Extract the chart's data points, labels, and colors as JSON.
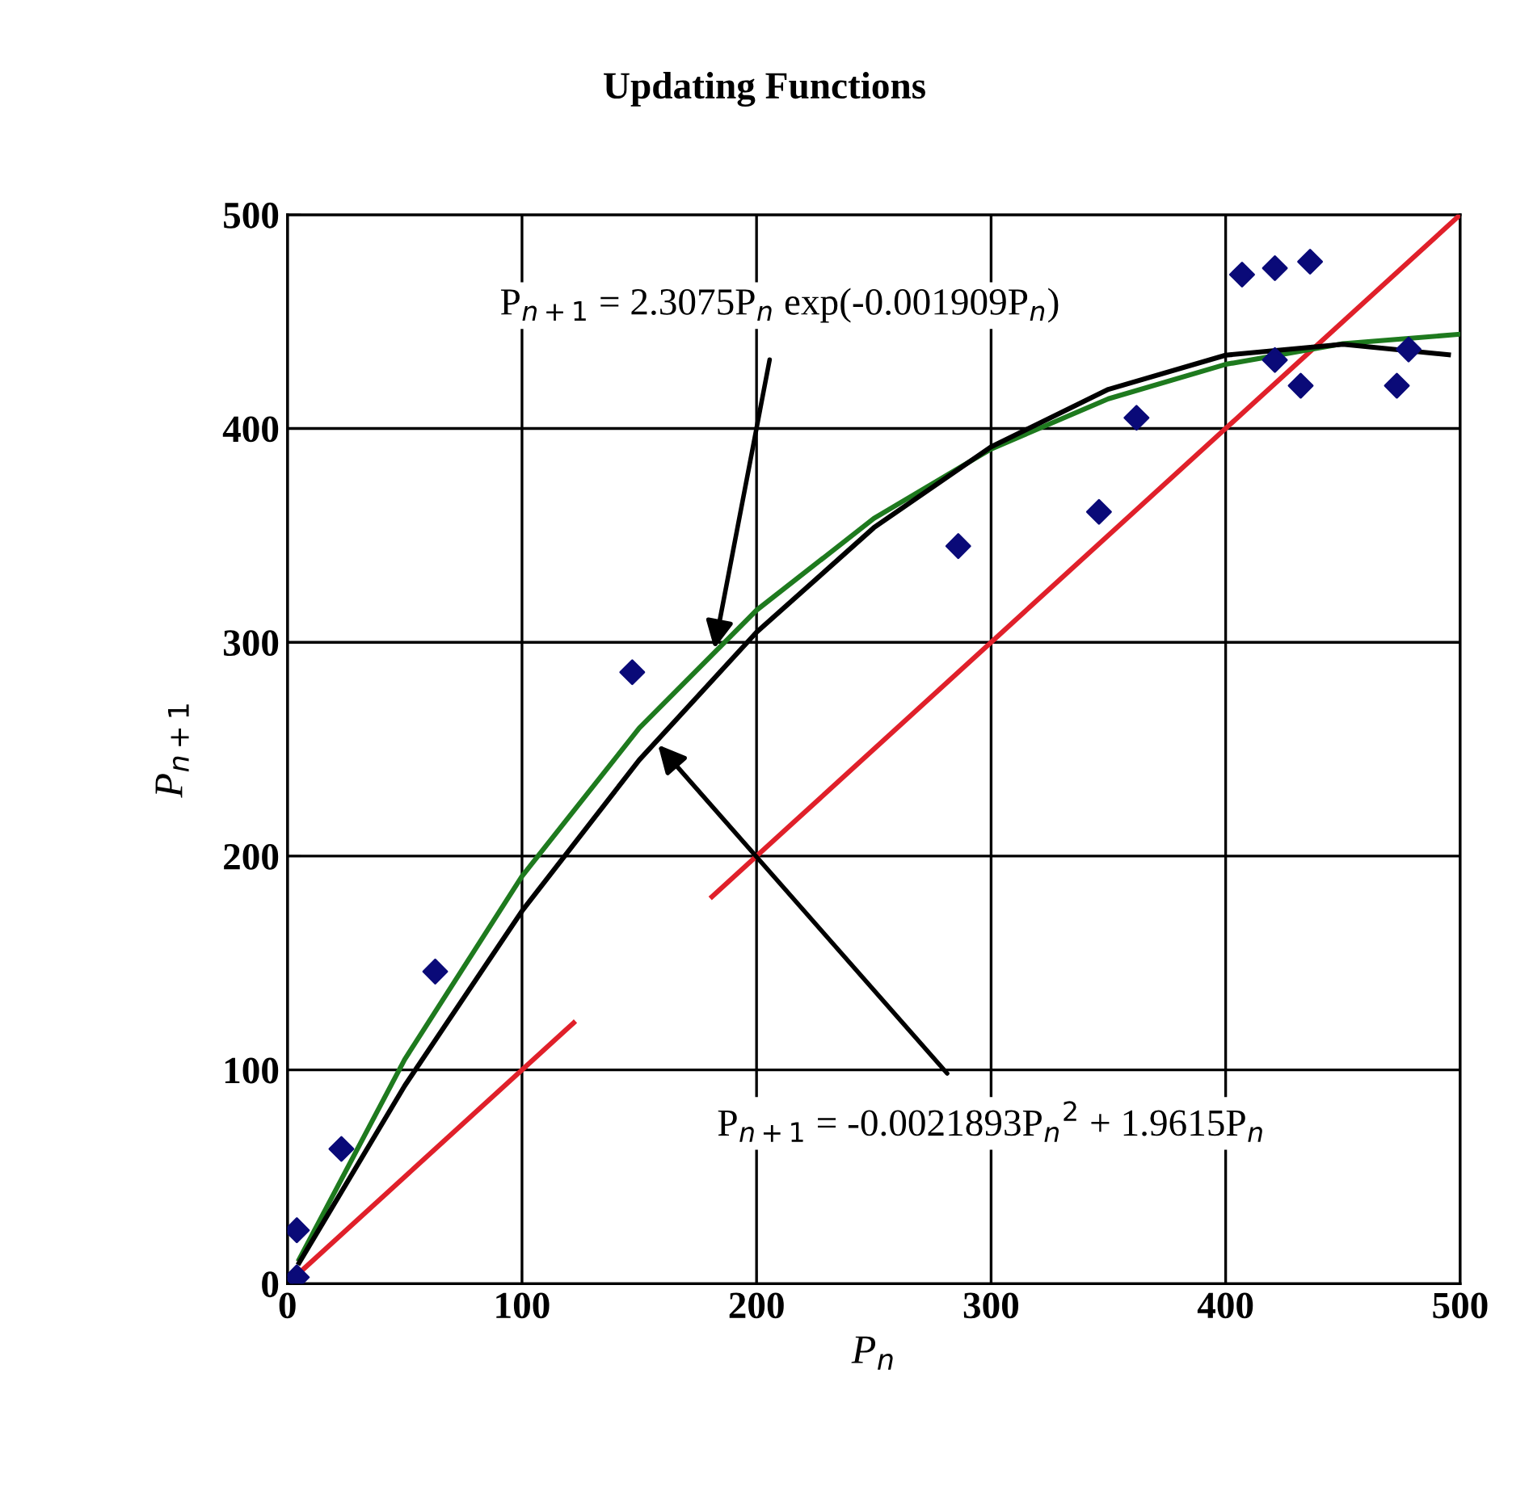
{
  "chart_data": {
    "type": "scatter",
    "title": "Updating Functions",
    "xlabel": "P$_{n}$",
    "ylabel": "P$_{n+1}$",
    "xlim": [
      0,
      500
    ],
    "ylim": [
      0,
      500
    ],
    "xticks": [
      0,
      100,
      200,
      300,
      400,
      500
    ],
    "yticks": [
      0,
      100,
      200,
      300,
      400,
      500
    ],
    "grid": true,
    "legend": false,
    "series": [
      {
        "type": "line",
        "color": "#e0202a",
        "x": [
          5,
          122,
          150,
          181,
          500
        ],
        "values": [
          5,
          122,
          null,
          181,
          500
        ]
      },
      {
        "type": "line",
        "color": "#1e7a1e",
        "x": [
          5,
          50,
          100,
          150,
          200,
          250,
          300,
          350,
          400,
          450,
          500
        ],
        "values": [
          11.4,
          104.9,
          190.6,
          259.9,
          315.0,
          357.9,
          390.4,
          413.9,
          430.0,
          439.7,
          444.1
        ]
      },
      {
        "type": "line",
        "color": "#000000",
        "x": [
          5,
          50,
          100,
          150,
          200,
          250,
          300,
          350,
          400,
          450,
          495
        ],
        "values": [
          9.8,
          92.6,
          174.3,
          245.0,
          304.7,
          353.6,
          391.4,
          418.3,
          434.3,
          439.4,
          434.5
        ]
      },
      {
        "color": "#0a0a78",
        "marker": "diamond",
        "x": [
          4,
          4,
          23,
          63,
          147,
          286,
          346,
          362,
          407,
          421,
          436,
          421,
          432,
          473,
          478
        ],
        "values": [
          25,
          3,
          63,
          146,
          286,
          345,
          361,
          405,
          472,
          475,
          478,
          432,
          420,
          420,
          437
        ]
      }
    ],
    "annotations": [
      {
        "text": "P$_{n+1}$ = 2.3075P$_{n}$ exp(-0.001909P$_{n}$)",
        "x": 182,
        "y": 297
      },
      {
        "text": "P$_{n+1}$ = -0.0021893P$_{n}$$^{2}$ + 1.9615P$_{n}$",
        "x": 158,
        "y": 252
      }
    ]
  }
}
